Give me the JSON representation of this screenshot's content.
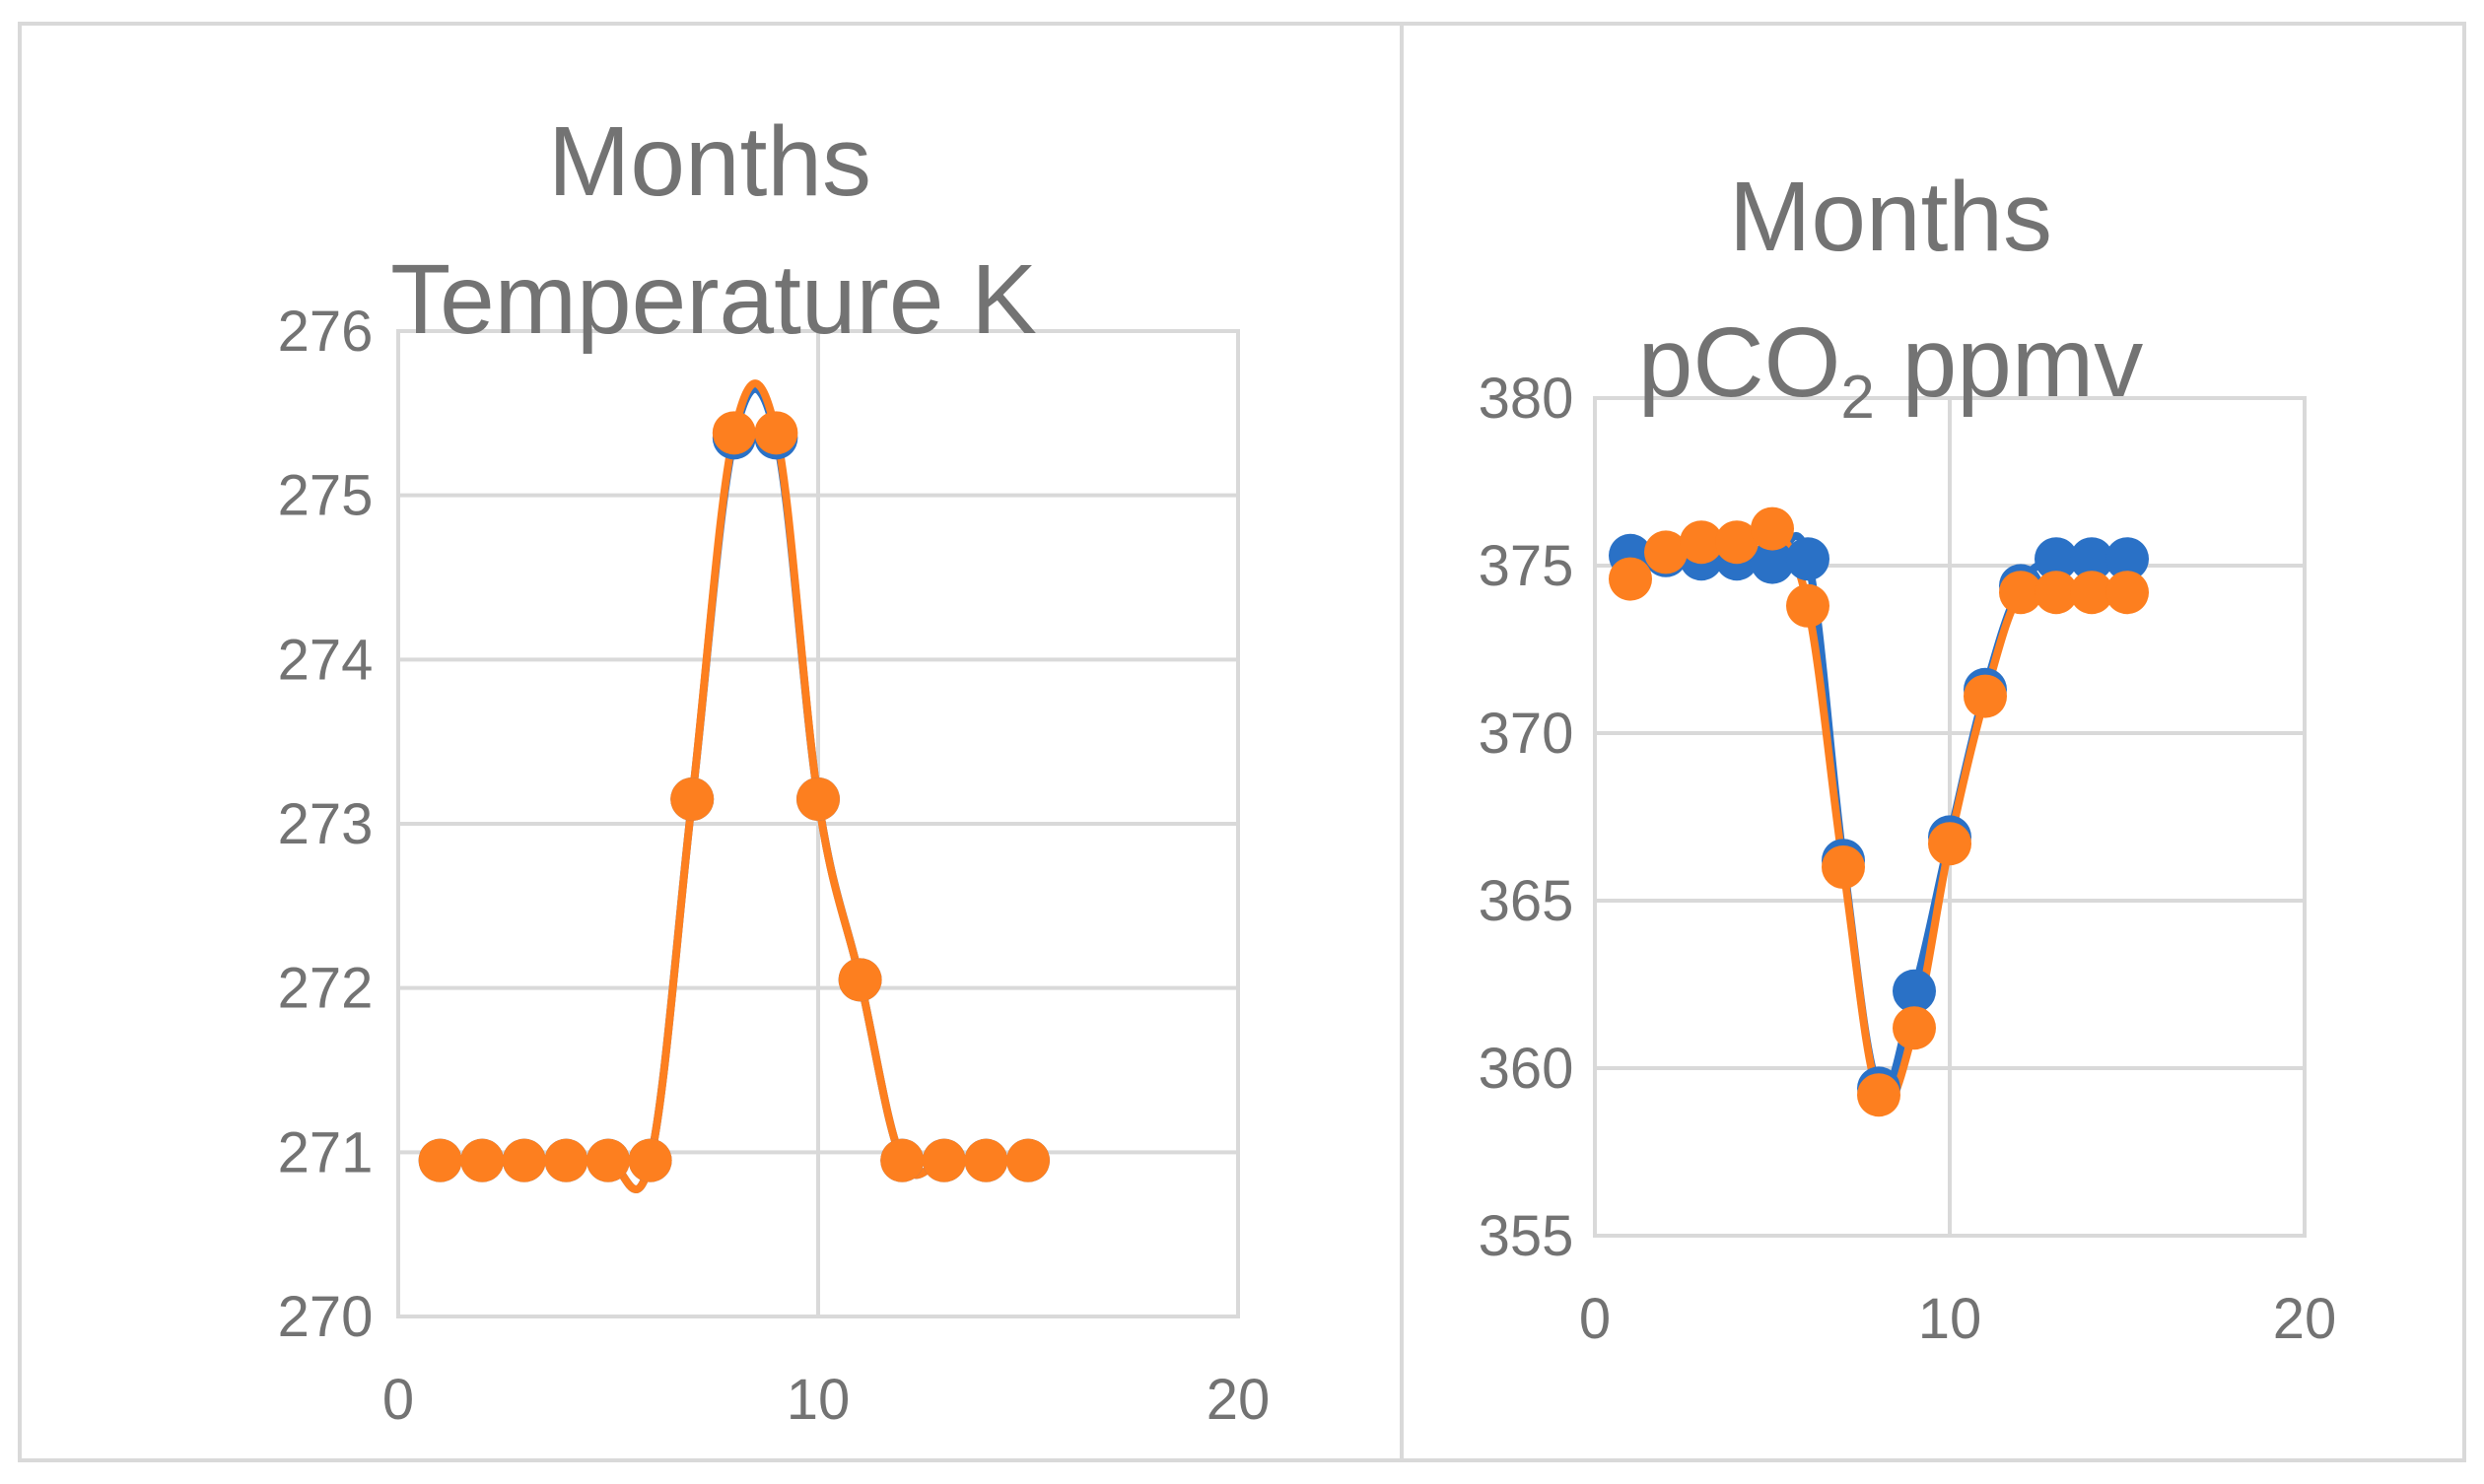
{
  "colors": {
    "series_blue": "#2a71c6",
    "series_orange": "#fd7f1f",
    "grid": "#d9d9d9",
    "text": "#737373"
  },
  "chart_data": [
    {
      "type": "scatter",
      "title_line1": "Months",
      "title_line2": "Temperature K",
      "xlabel": "",
      "ylabel": "",
      "xlim": [
        0,
        20
      ],
      "ylim": [
        270,
        276
      ],
      "xticks": [
        "0",
        "10",
        "20"
      ],
      "yticks": [
        "270",
        "271",
        "272",
        "273",
        "274",
        "275",
        "276"
      ],
      "grid": true,
      "series": [
        {
          "name": "blue",
          "color": "#2a71c6",
          "x": [
            1,
            2,
            3,
            4,
            5,
            6,
            7,
            8,
            9,
            10,
            11,
            12,
            13,
            14,
            15
          ],
          "y": [
            270.95,
            270.95,
            270.95,
            270.95,
            270.95,
            270.95,
            273.15,
            275.35,
            275.35,
            273.15,
            272.05,
            270.95,
            270.95,
            270.95,
            270.95
          ]
        },
        {
          "name": "orange",
          "color": "#fd7f1f",
          "x": [
            1,
            2,
            3,
            4,
            5,
            6,
            7,
            8,
            9,
            10,
            11,
            12,
            13,
            14,
            15
          ],
          "y": [
            270.95,
            270.95,
            270.95,
            270.95,
            270.95,
            270.95,
            273.15,
            275.38,
            275.38,
            273.15,
            272.05,
            270.95,
            270.95,
            270.95,
            270.95
          ]
        }
      ]
    },
    {
      "type": "scatter",
      "title_line1": "Months",
      "title_line2_main": "pCO",
      "title_line2_sub": "2",
      "title_line2_end": " ppmv",
      "xlabel": "",
      "ylabel": "",
      "xlim": [
        0,
        20
      ],
      "ylim": [
        355,
        380
      ],
      "xticks": [
        "0",
        "10",
        "20"
      ],
      "yticks": [
        "355",
        "360",
        "365",
        "370",
        "375",
        "380"
      ],
      "grid": true,
      "series": [
        {
          "name": "blue",
          "color": "#2a71c6",
          "x": [
            1,
            2,
            3,
            4,
            5,
            6,
            7,
            8,
            9,
            10,
            11,
            12,
            13,
            14,
            15
          ],
          "y": [
            375.3,
            375.3,
            375.2,
            375.2,
            375.1,
            375.2,
            366.2,
            359.4,
            362.3,
            366.9,
            371.3,
            374.4,
            375.2,
            375.2,
            375.2
          ]
        },
        {
          "name": "orange",
          "color": "#fd7f1f",
          "x": [
            1,
            2,
            3,
            4,
            5,
            6,
            7,
            8,
            9,
            10,
            11,
            12,
            13,
            14,
            15
          ],
          "y": [
            374.6,
            375.4,
            375.7,
            375.7,
            376.1,
            373.8,
            366.0,
            359.2,
            361.2,
            366.7,
            371.1,
            374.2,
            374.2,
            374.2,
            374.2
          ]
        }
      ]
    }
  ]
}
